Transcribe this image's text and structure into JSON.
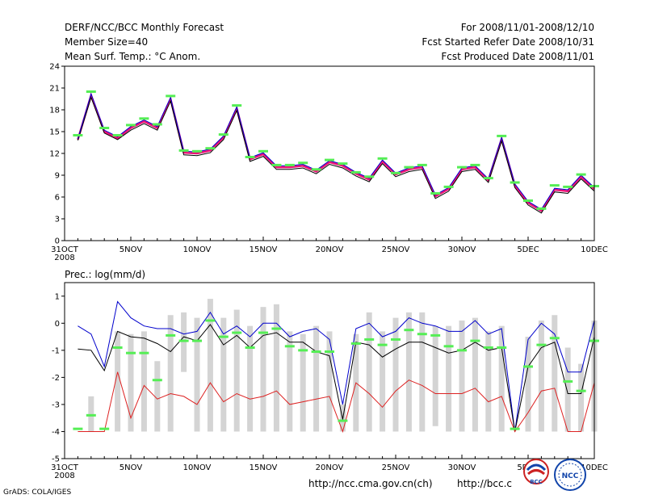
{
  "header": {
    "title": "DERF/NCC/BCC Monthly Forecast",
    "member": "Member Size=40",
    "variable": "Mean Surf. Temp.: °C Anom.",
    "period": "For 2008/11/01-2008/12/10",
    "started": "Fcst Started Refer Date 2008/10/31",
    "produced": "Fcst Produced Date 2008/11/01"
  },
  "footer": {
    "url1": "http://ncc.cma.gov.cn(ch)",
    "url2": "http://bcc.c",
    "credit": "GrADS: COLA/IGES"
  },
  "logos": {
    "bcc_text": "BCC",
    "ncc_text": "NCC"
  },
  "colors": {
    "green": "#55ee55",
    "blue": "#0000cc",
    "black": "#000000",
    "red": "#dd2222",
    "magenta": "#ee1177",
    "bars": "#d4d4d4"
  },
  "chart_data": [
    {
      "type": "line",
      "title": "Mean Surf. Temp.: °C Anom.",
      "x_tick_labels": [
        "31OCT",
        "5NOV",
        "10NOV",
        "15NOV",
        "20NOV",
        "25NOV",
        "30NOV",
        "5DEC",
        "10DEC"
      ],
      "x_year_label": "2008",
      "x_tick_days": [
        0,
        5,
        10,
        15,
        20,
        25,
        30,
        35,
        40
      ],
      "xlim": [
        0,
        40
      ],
      "ylim": [
        0,
        24
      ],
      "y_ticks": [
        0,
        3,
        6,
        9,
        12,
        15,
        18,
        21,
        24
      ],
      "x": [
        1,
        2,
        3,
        4,
        5,
        6,
        7,
        8,
        9,
        10,
        11,
        12,
        13,
        14,
        15,
        16,
        17,
        18,
        19,
        20,
        21,
        22,
        23,
        24,
        25,
        26,
        27,
        28,
        29,
        30,
        31,
        32,
        33,
        34,
        35,
        36,
        37,
        38,
        39,
        40
      ],
      "series": [
        {
          "name": "ensemble-mean-magenta",
          "values": [
            13.9,
            20.0,
            15.0,
            14.1,
            15.5,
            16.4,
            15.5,
            19.5,
            12.1,
            12.0,
            12.4,
            14.2,
            18.2,
            11.2,
            11.9,
            10.1,
            10.1,
            10.3,
            9.5,
            10.8,
            10.3,
            9.2,
            8.4,
            10.9,
            9.1,
            9.8,
            10.1,
            6.1,
            7.1,
            9.8,
            10.1,
            8.3,
            14.0,
            7.6,
            5.2,
            4.1,
            7.0,
            6.8,
            8.8,
            7.1
          ]
        },
        {
          "name": "member-black",
          "values": [
            13.8,
            19.7,
            14.8,
            13.9,
            15.2,
            16.1,
            15.2,
            19.2,
            11.8,
            11.7,
            12.1,
            13.9,
            17.9,
            10.9,
            11.6,
            9.8,
            9.8,
            10.0,
            9.2,
            10.5,
            10.0,
            8.9,
            8.1,
            10.6,
            8.8,
            9.5,
            9.8,
            5.8,
            6.8,
            9.5,
            9.8,
            8.0,
            13.7,
            7.3,
            4.9,
            3.8,
            6.7,
            6.5,
            8.5,
            6.8
          ]
        },
        {
          "name": "member-blue",
          "values": [
            14.0,
            20.2,
            15.2,
            14.3,
            15.7,
            16.6,
            15.7,
            19.7,
            12.3,
            12.2,
            12.6,
            14.4,
            18.4,
            11.4,
            12.1,
            10.3,
            10.3,
            10.5,
            9.7,
            11.0,
            10.5,
            9.4,
            8.6,
            11.1,
            9.3,
            10.0,
            10.3,
            6.3,
            7.3,
            10.0,
            10.3,
            8.5,
            14.2,
            7.8,
            5.4,
            4.3,
            7.2,
            7.0,
            9.0,
            7.3
          ]
        },
        {
          "name": "max-green",
          "values": [
            14.5,
            20.5,
            15.5,
            14.5,
            15.9,
            16.8,
            16.0,
            19.9,
            12.4,
            12.3,
            12.7,
            14.6,
            18.6,
            11.5,
            12.3,
            10.4,
            10.4,
            10.7,
            9.8,
            11.1,
            10.6,
            9.4,
            8.8,
            11.3,
            9.3,
            10.1,
            10.4,
            6.5,
            7.4,
            10.1,
            10.4,
            8.6,
            14.4,
            8.0,
            5.5,
            4.4,
            7.6,
            7.4,
            9.1,
            7.5
          ]
        }
      ]
    },
    {
      "type": "bar",
      "title": "Prec.: log(mm/d)",
      "x_tick_labels": [
        "31OCT",
        "5NOV",
        "10NOV",
        "15NOV",
        "20NOV",
        "25NOV",
        "30NOV",
        "5DEC",
        "10DEC"
      ],
      "x_year_label": "2008",
      "x_tick_days": [
        0,
        5,
        10,
        15,
        20,
        25,
        30,
        35,
        40
      ],
      "xlim": [
        0,
        40
      ],
      "ylim": [
        -5,
        1.5
      ],
      "y_ticks": [
        -5,
        -4,
        -3,
        -2,
        -1,
        0,
        1
      ],
      "x": [
        1,
        2,
        3,
        4,
        5,
        6,
        7,
        8,
        9,
        10,
        11,
        12,
        13,
        14,
        15,
        16,
        17,
        18,
        19,
        20,
        21,
        22,
        23,
        24,
        25,
        26,
        27,
        28,
        29,
        30,
        31,
        32,
        33,
        34,
        35,
        36,
        37,
        38,
        39,
        40
      ],
      "bars": {
        "top": [
          -4,
          -2.7,
          -4,
          -0.3,
          -0.4,
          -0.3,
          -1.4,
          0.3,
          0.4,
          0.2,
          0.9,
          0.2,
          0.5,
          -0.1,
          0.6,
          0.7,
          -0.3,
          -0.4,
          -0.1,
          -0.3,
          -3.0,
          -0.4,
          0.4,
          -0.3,
          0.2,
          0.4,
          0.4,
          -0.1,
          -0.1,
          0.1,
          0.2,
          -0.3,
          -0.1,
          -4,
          -0.5,
          0.1,
          0.3,
          -0.9,
          -1.5,
          0.1
        ],
        "bottom": [
          -4,
          -4,
          -4,
          -4,
          -4,
          -4,
          -4,
          -4,
          -1.8,
          -4,
          -4,
          -4,
          -4,
          -4,
          -4,
          -4,
          -4,
          -4,
          -4,
          -4,
          -4,
          -4,
          -4,
          -4,
          -4,
          -4,
          -4,
          -3.8,
          -4,
          -4,
          -4,
          -4,
          -4,
          -4,
          -4,
          -4,
          -4,
          -4,
          -4,
          -4
        ]
      },
      "series": [
        {
          "name": "max-blue",
          "values": [
            -0.1,
            -0.4,
            -1.6,
            0.8,
            0.2,
            -0.1,
            -0.2,
            -0.2,
            -0.4,
            -0.3,
            0.4,
            -0.4,
            -0.1,
            -0.5,
            0.0,
            0.0,
            -0.5,
            -0.3,
            -0.2,
            -0.6,
            -3.0,
            -0.2,
            0.0,
            -0.5,
            -0.3,
            0.2,
            0.0,
            -0.1,
            -0.3,
            -0.3,
            0.1,
            -0.4,
            -0.2,
            -4.0,
            -0.6,
            0.0,
            -0.4,
            -1.8,
            -1.8,
            0.1
          ]
        },
        {
          "name": "mean-black",
          "values": [
            -0.95,
            -1.0,
            -1.75,
            -0.3,
            -0.5,
            -0.55,
            -0.75,
            -1.05,
            -0.5,
            -0.65,
            -0.05,
            -0.8,
            -0.45,
            -0.9,
            -0.45,
            -0.35,
            -0.7,
            -0.7,
            -1.05,
            -1.2,
            -3.55,
            -0.7,
            -0.8,
            -1.25,
            -0.95,
            -0.7,
            -0.7,
            -0.9,
            -1.1,
            -1.0,
            -0.7,
            -1.0,
            -0.9,
            -4.0,
            -1.6,
            -0.9,
            -0.7,
            -2.6,
            -2.6,
            -0.5
          ]
        },
        {
          "name": "min-red",
          "values": [
            -4.0,
            -4.0,
            -4.0,
            -1.8,
            -3.5,
            -2.3,
            -2.8,
            -2.6,
            -2.7,
            -3.0,
            -2.2,
            -2.9,
            -2.6,
            -2.8,
            -2.7,
            -2.5,
            -3.0,
            -2.9,
            -2.8,
            -2.7,
            -4.0,
            -2.2,
            -2.6,
            -3.1,
            -2.5,
            -2.1,
            -2.3,
            -2.6,
            -2.6,
            -2.6,
            -2.4,
            -2.9,
            -2.7,
            -4.0,
            -3.3,
            -2.5,
            -2.4,
            -4.0,
            -4.0,
            -2.2
          ]
        },
        {
          "name": "obs-green",
          "values": [
            -3.9,
            -3.4,
            -3.9,
            -0.9,
            -1.1,
            -1.1,
            -2.1,
            -0.45,
            -0.65,
            -0.65,
            0.1,
            -0.5,
            -0.35,
            -0.9,
            -0.35,
            -0.2,
            -0.85,
            -1.0,
            -1.05,
            -1.05,
            -3.6,
            -0.75,
            -0.6,
            -0.8,
            -0.6,
            -0.25,
            -0.4,
            -0.45,
            -0.85,
            -1.0,
            -0.65,
            -0.9,
            -0.9,
            -3.9,
            -1.6,
            -0.8,
            -0.55,
            -2.15,
            -2.5,
            -0.65
          ]
        }
      ]
    }
  ]
}
